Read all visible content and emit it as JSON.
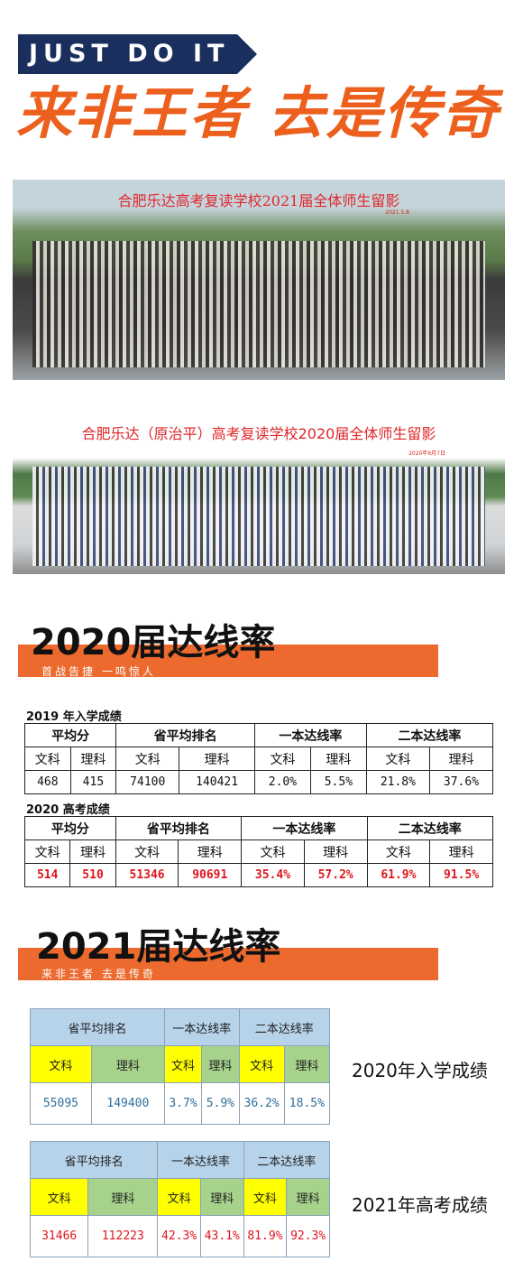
{
  "header": {
    "tagline": "JUST DO IT",
    "slogan": "来非王者 去是传奇"
  },
  "photos": [
    {
      "caption": "合肥乐达高考复读学校2021届全体师生留影",
      "date": "2021.5.8"
    },
    {
      "caption": "合肥乐达（原治平）高考复读学校2020届全体师生留影",
      "date": "2020年6月7日"
    }
  ],
  "section2020": {
    "title": "2020届达线率",
    "subtitle": "首战告捷 一鸣惊人",
    "tables": [
      {
        "label": "2019 年入学成绩",
        "groups": [
          "平均分",
          "省平均排名",
          "一本达线率",
          "二本达线率"
        ],
        "subheaders": [
          "文科",
          "理科",
          "文科",
          "理科",
          "文科",
          "理科",
          "文科",
          "理科"
        ],
        "values": [
          "468",
          "415",
          "74100",
          "140421",
          "2.0%",
          "5.5%",
          "21.8%",
          "37.6%"
        ]
      },
      {
        "label": "2020 高考成绩",
        "groups": [
          "平均分",
          "省平均排名",
          "一本达线率",
          "二本达线率"
        ],
        "subheaders": [
          "文科",
          "理科",
          "文科",
          "理科",
          "文科",
          "理科",
          "文科",
          "理科"
        ],
        "values": [
          "514",
          "510",
          "51346",
          "90691",
          "35.4%",
          "57.2%",
          "61.9%",
          "91.5%"
        ]
      }
    ]
  },
  "section2021": {
    "title": "2021届达线率",
    "subtitle": "来非王者 去是传奇",
    "tables": [
      {
        "label": "2020年入学成绩",
        "groups": [
          "省平均排名",
          "一本达线率",
          "二本达线率"
        ],
        "subheaders": [
          "文科",
          "理科",
          "文科",
          "理科",
          "文科",
          "理科"
        ],
        "values": [
          "55095",
          "149400",
          "3.7%",
          "5.9%",
          "36.2%",
          "18.5%"
        ]
      },
      {
        "label": "2021年高考成绩",
        "groups": [
          "省平均排名",
          "一本达线率",
          "二本达线率"
        ],
        "subheaders": [
          "文科",
          "理科",
          "文科",
          "理科",
          "文科",
          "理科"
        ],
        "values": [
          "31466",
          "112223",
          "42.3%",
          "43.1%",
          "81.9%",
          "92.3%"
        ]
      }
    ]
  },
  "colors": {
    "accent": "#ec6a2e",
    "navy": "#1a2f5e",
    "red": "#e0141c",
    "blue": "#2f6f9a",
    "yellow": "#ffff00",
    "green": "#a6d28c",
    "lightblue": "#b7d3ea"
  }
}
